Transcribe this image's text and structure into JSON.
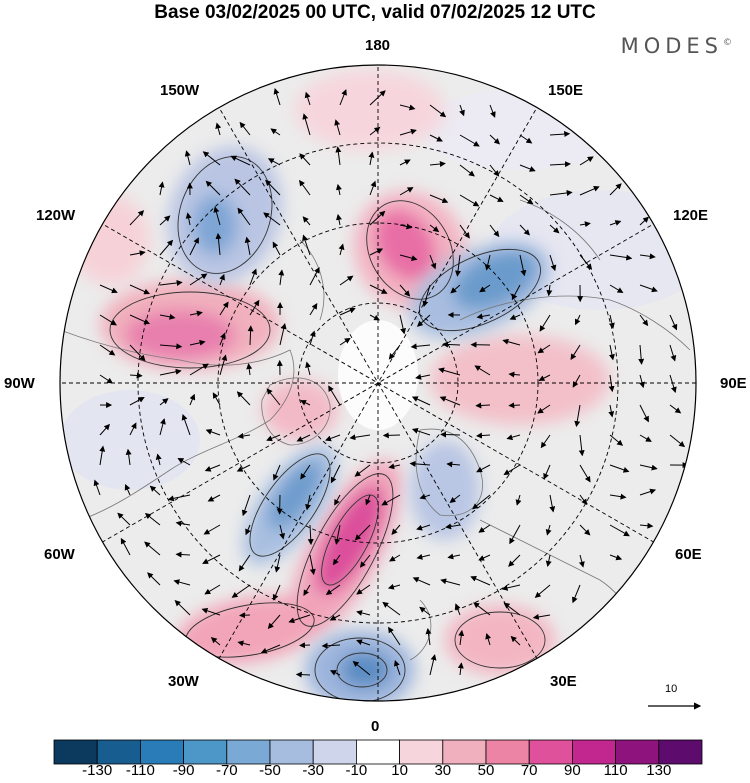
{
  "title": "Base 03/02/2025 00 UTC, valid 07/02/2025 12 UTC",
  "logo": "MODES",
  "logo_mark": "©",
  "longitude_labels": {
    "top": "180",
    "bottom": "0",
    "left": "90W",
    "right": "90E",
    "upper_left_1": "150W",
    "upper_left_2": "120W",
    "upper_right_1": "150E",
    "upper_right_2": "120E",
    "lower_left_1": "60W",
    "lower_left_2": "30W",
    "lower_right_1": "60E",
    "lower_right_2": "30E"
  },
  "reference_vector": {
    "label": "10"
  },
  "colorbar": {
    "ticks": [
      "-130",
      "-110",
      "-90",
      "-70",
      "-50",
      "-30",
      "-10",
      "10",
      "30",
      "50",
      "70",
      "90",
      "110",
      "130"
    ],
    "colors": [
      "#0b3a5e",
      "#175d8f",
      "#2a7cb8",
      "#4d96c8",
      "#7aa9d6",
      "#a6bde0",
      "#cfd6ec",
      "#ffffff",
      "#f6d6dc",
      "#f1b0bd",
      "#ec84a5",
      "#e0519b",
      "#c2268f",
      "#8f137d",
      "#5e0b6e"
    ]
  },
  "colors": {
    "background": "#ffffff",
    "land_gray": "#e6e6e6"
  }
}
